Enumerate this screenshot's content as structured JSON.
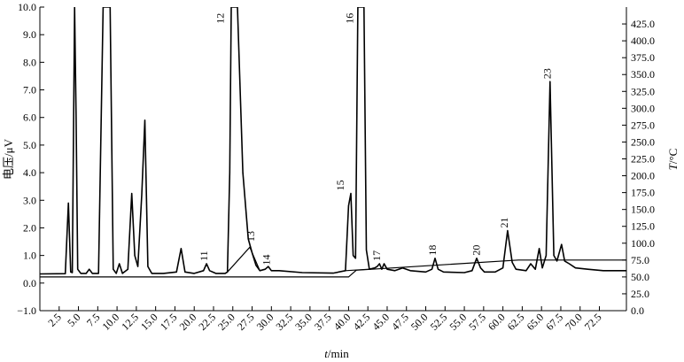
{
  "chart_data": {
    "type": "line",
    "ylabel": "电压/μV",
    "xlabel_italic": "t",
    "xlabel_rest": "/min",
    "y2label_italic": "T",
    "y2label_rest": "/°C",
    "xlim": [
      0,
      76
    ],
    "ylim": [
      -1.0,
      10.0
    ],
    "y2lim": [
      0.0,
      450.0
    ],
    "x_ticks": [
      "2.5",
      "5.0",
      "7.5",
      "10.0",
      "12.5",
      "15.0",
      "17.5",
      "20.0",
      "22.5",
      "25.0",
      "27.5",
      "30.0",
      "32.5",
      "35.0",
      "37.5",
      "40.0",
      "42.5",
      "45.0",
      "47.5",
      "50.0",
      "52.5",
      "55.0",
      "57.5",
      "60.0",
      "62.5",
      "65.0",
      "67.5",
      "70.0",
      "72.5"
    ],
    "y_ticks": [
      "−1.0",
      "0.0",
      "1.0",
      "2.0",
      "3.0",
      "4.0",
      "5.0",
      "6.0",
      "7.0",
      "8.0",
      "9.0",
      "10.0"
    ],
    "y2_ticks": [
      "0.0",
      "25.0",
      "50.0",
      "75.0",
      "100.0",
      "125.0",
      "150.0",
      "175.0",
      "200.0",
      "225.0",
      "250.0",
      "275.0",
      "300.0",
      "325.0",
      "350.0",
      "375.0",
      "400.0",
      "425.0"
    ],
    "series": [
      {
        "kind": "chromatogram",
        "baseline": 0.33,
        "points": [
          [
            0,
            0.33
          ],
          [
            3.3,
            0.34
          ],
          [
            3.7,
            2.9
          ],
          [
            4.0,
            0.4
          ],
          [
            4.2,
            0.38
          ],
          [
            4.5,
            10.0
          ],
          [
            4.7,
            6.0
          ],
          [
            4.9,
            0.5
          ],
          [
            5.3,
            0.35
          ],
          [
            6.0,
            0.35
          ],
          [
            6.4,
            0.5
          ],
          [
            6.8,
            0.35
          ],
          [
            7.6,
            0.35
          ],
          [
            8.2,
            10.0
          ],
          [
            9.1,
            10.0
          ],
          [
            9.5,
            0.5
          ],
          [
            9.9,
            0.35
          ],
          [
            10.3,
            0.7
          ],
          [
            10.7,
            0.35
          ],
          [
            11.4,
            0.5
          ],
          [
            11.9,
            3.25
          ],
          [
            12.3,
            1.0
          ],
          [
            12.7,
            0.6
          ],
          [
            13.2,
            3.2
          ],
          [
            13.6,
            5.9
          ],
          [
            14.0,
            0.6
          ],
          [
            14.5,
            0.35
          ],
          [
            16.0,
            0.35
          ],
          [
            17.7,
            0.4
          ],
          [
            18.3,
            1.25
          ],
          [
            18.8,
            0.4
          ],
          [
            20.0,
            0.35
          ],
          [
            21.2,
            0.45
          ],
          [
            21.6,
            0.7
          ],
          [
            22.0,
            0.45
          ],
          [
            22.8,
            0.35
          ],
          [
            24.0,
            0.35
          ],
          [
            24.3,
            0.4
          ],
          [
            24.6,
            4.0
          ],
          [
            24.8,
            10.0
          ],
          [
            25.6,
            10.0
          ],
          [
            26.3,
            4.0
          ],
          [
            27.0,
            1.6
          ],
          [
            27.5,
            1.1
          ],
          [
            28.0,
            0.65
          ],
          [
            28.5,
            0.45
          ],
          [
            29.2,
            0.5
          ],
          [
            29.6,
            0.6
          ],
          [
            30.0,
            0.45
          ],
          [
            31.0,
            0.45
          ],
          [
            34.0,
            0.38
          ],
          [
            38.0,
            0.36
          ],
          [
            39.6,
            0.45
          ],
          [
            40.0,
            2.8
          ],
          [
            40.3,
            3.25
          ],
          [
            40.6,
            1.0
          ],
          [
            40.9,
            0.9
          ],
          [
            41.2,
            10.0
          ],
          [
            42.0,
            10.0
          ],
          [
            42.3,
            1.2
          ],
          [
            42.7,
            0.5
          ],
          [
            43.4,
            0.55
          ],
          [
            43.7,
            0.6
          ],
          [
            44.0,
            0.7
          ],
          [
            44.3,
            0.5
          ],
          [
            44.6,
            0.7
          ],
          [
            45.0,
            0.5
          ],
          [
            46.0,
            0.45
          ],
          [
            47.0,
            0.55
          ],
          [
            48.0,
            0.45
          ],
          [
            50.0,
            0.4
          ],
          [
            50.8,
            0.5
          ],
          [
            51.2,
            0.9
          ],
          [
            51.6,
            0.5
          ],
          [
            52.3,
            0.4
          ],
          [
            55.0,
            0.38
          ],
          [
            56.0,
            0.45
          ],
          [
            56.6,
            0.9
          ],
          [
            57.1,
            0.55
          ],
          [
            57.6,
            0.4
          ],
          [
            59.0,
            0.4
          ],
          [
            60.0,
            0.55
          ],
          [
            60.6,
            1.9
          ],
          [
            61.2,
            0.75
          ],
          [
            61.7,
            0.5
          ],
          [
            63.0,
            0.45
          ],
          [
            63.6,
            0.7
          ],
          [
            64.2,
            0.5
          ],
          [
            64.7,
            1.25
          ],
          [
            65.1,
            0.55
          ],
          [
            65.6,
            1.0
          ],
          [
            66.1,
            7.3
          ],
          [
            66.6,
            1.0
          ],
          [
            67.0,
            0.8
          ],
          [
            67.6,
            1.4
          ],
          [
            68.0,
            0.8
          ],
          [
            68.6,
            0.7
          ],
          [
            69.4,
            0.55
          ],
          [
            71.0,
            0.5
          ],
          [
            73.0,
            0.45
          ],
          [
            76.0,
            0.45
          ]
        ]
      },
      {
        "kind": "temperature",
        "points": [
          [
            0,
            50
          ],
          [
            40,
            50
          ],
          [
            41,
            60
          ],
          [
            62,
            75
          ],
          [
            76,
            75
          ]
        ]
      }
    ],
    "integration_baselines": [
      [
        [
          24.3,
          0.4
        ],
        [
          27.2,
          1.3
        ],
        [
          28.5,
          0.45
        ]
      ],
      [
        [
          39.6,
          0.45
        ],
        [
          42.6,
          0.5
        ]
      ]
    ],
    "annotations": [
      {
        "text": "11",
        "x": 21.7,
        "y": 0.8
      },
      {
        "text": "12",
        "x": 23.8,
        "y": 9.4
      },
      {
        "text": "13",
        "x": 27.8,
        "y": 1.5
      },
      {
        "text": "14",
        "x": 29.8,
        "y": 0.65
      },
      {
        "text": "15",
        "x": 39.4,
        "y": 3.35
      },
      {
        "text": "16",
        "x": 40.6,
        "y": 9.4
      },
      {
        "text": "17",
        "x": 44.1,
        "y": 0.8
      },
      {
        "text": "18",
        "x": 51.3,
        "y": 1.0
      },
      {
        "text": "20",
        "x": 57.0,
        "y": 1.0
      },
      {
        "text": "21",
        "x": 60.6,
        "y": 2.0
      },
      {
        "text": "23",
        "x": 66.2,
        "y": 7.4
      }
    ]
  }
}
